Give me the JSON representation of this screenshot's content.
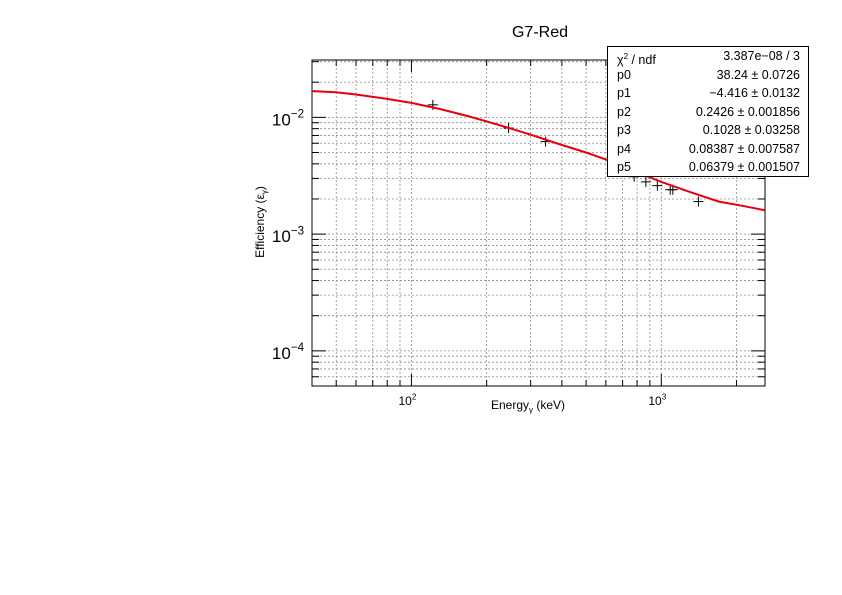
{
  "chart_data": {
    "type": "scatter",
    "title": "G7-Red",
    "xlabel": "Energyγ (keV)",
    "ylabel": "Efficiency (εγ)",
    "x_scale": "log",
    "y_scale": "log",
    "xlim": [
      40,
      2600
    ],
    "ylim": [
      5e-05,
      0.031
    ],
    "grid": true,
    "x_tick_labels": [
      "10^2",
      "10^3"
    ],
    "y_tick_labels": [
      "10^-4",
      "10^-3",
      "10^-2"
    ],
    "series": [
      {
        "style": "markers",
        "x": [
          121.8,
          244.7,
          344.3,
          778.9,
          867.4,
          964.1,
          1085.8,
          1112.1,
          1408.0
        ],
        "y": [
          0.0128,
          0.0081,
          0.0062,
          0.0031,
          0.0028,
          0.0026,
          0.0024,
          0.0024,
          0.0019
        ]
      },
      {
        "style": "line",
        "color": "#e8000b",
        "x": [
          40,
          50,
          60,
          80,
          100,
          130,
          170,
          220,
          300,
          400,
          500,
          650,
          800,
          1000,
          1300,
          1700,
          2100,
          2600
        ],
        "y": [
          0.0168,
          0.0164,
          0.0157,
          0.0144,
          0.0133,
          0.0118,
          0.0102,
          0.0087,
          0.0071,
          0.0058,
          0.005,
          0.0041,
          0.0034,
          0.0028,
          0.0023,
          0.0019,
          0.00175,
          0.0016
        ]
      }
    ],
    "fit_stats": [
      {
        "label": "χ² / ndf",
        "value": "3.387e−08 / 3"
      },
      {
        "label": "p0",
        "value": "38.24 ± 0.0726"
      },
      {
        "label": "p1",
        "value": "−4.416 ± 0.0132"
      },
      {
        "label": "p2",
        "value": "0.2426 ± 0.001856"
      },
      {
        "label": "p3",
        "value": "0.1028 ± 0.03258"
      },
      {
        "label": "p4",
        "value": "0.08387 ± 0.007587"
      },
      {
        "label": "p5",
        "value": "0.06379 ± 0.001507"
      }
    ]
  }
}
